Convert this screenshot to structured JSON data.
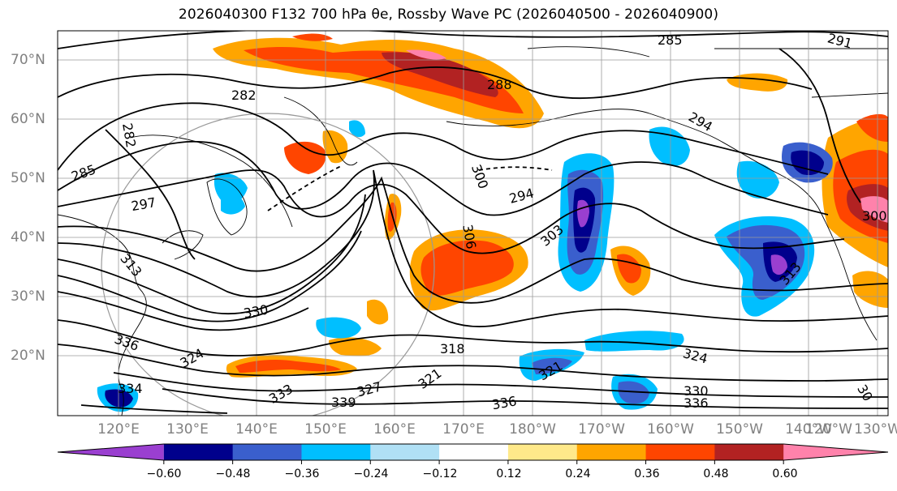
{
  "title": "2026040300 F132 700 hPa θe, Rossby Wave PC (2026040500 - 2026040900)",
  "lat_ticks": [
    "70°N",
    "60°N",
    "50°N",
    "40°N",
    "30°N",
    "20°N"
  ],
  "lon_ticks": [
    "120°E",
    "130°E",
    "140°E",
    "150°E",
    "160°E",
    "170°E",
    "180°W",
    "170°W",
    "160°W",
    "150°W",
    "140°W",
    "130°W",
    "120°W"
  ],
  "contour_labels": [
    "285",
    "282",
    "282",
    "285",
    "288",
    "294",
    "300",
    "294",
    "297",
    "303",
    "306",
    "313",
    "330",
    "336",
    "318",
    "324",
    "321",
    "321",
    "330",
    "336",
    "336",
    "339",
    "327",
    "333",
    "324",
    "291",
    "300",
    "313",
    "334",
    "30"
  ],
  "colorbar": {
    "ticks": [
      "−0.60",
      "−0.48",
      "−0.36",
      "−0.24",
      "−0.12",
      "0.12",
      "0.24",
      "0.36",
      "0.48",
      "0.60"
    ],
    "colors": [
      "#9a3fd0",
      "#00008c",
      "#3a5fcd",
      "#00bfff",
      "#b0e0f5",
      "#ffffff",
      "#ffe98a",
      "#ffa500",
      "#ff4500",
      "#b22222",
      "#ff82ab"
    ]
  },
  "palette": {
    "pos1": "#ffe98a",
    "pos2": "#ffa500",
    "pos3": "#ff4500",
    "pos4": "#b22222",
    "pos5": "#ff82ab",
    "neg1": "#b0e0f5",
    "neg2": "#00bfff",
    "neg3": "#3a5fcd",
    "neg4": "#00008c",
    "neg5": "#9a3fd0"
  }
}
